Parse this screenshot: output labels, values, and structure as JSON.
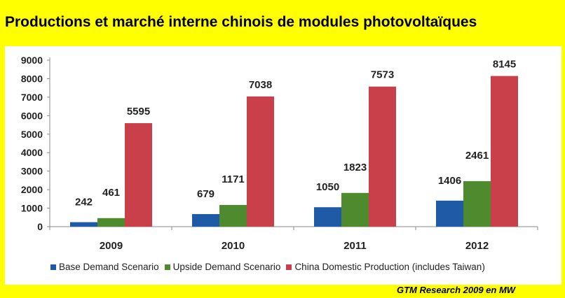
{
  "title": "Productions et marché interne chinois de modules photovoltaïques",
  "source": "GTM Research 2009 en MW",
  "chart_data": {
    "type": "bar",
    "title": "",
    "xlabel": "",
    "ylabel": "",
    "categories": [
      "2009",
      "2010",
      "2011",
      "2012"
    ],
    "series": [
      {
        "name": "Base Demand Scenario",
        "values": [
          242,
          679,
          1050,
          1406
        ],
        "color": "#1f5aa6"
      },
      {
        "name": "Upside Demand Scenario",
        "values": [
          461,
          1171,
          1823,
          2461
        ],
        "color": "#4e8a2e"
      },
      {
        "name": "China Domestic Production (includes Taiwan)",
        "values": [
          5595,
          7038,
          7573,
          8145
        ],
        "color": "#c9404a"
      }
    ],
    "data_labels": [
      [
        "242",
        "461",
        "5595"
      ],
      [
        "679",
        "1171",
        "7038"
      ],
      [
        "1050",
        "1823",
        "7573"
      ],
      [
        "1406",
        "2461",
        "8145"
      ]
    ],
    "y_ticks": [
      "0",
      "1000",
      "2000",
      "3000",
      "4000",
      "5000",
      "6000",
      "7000",
      "8000",
      "9000"
    ],
    "ylim": [
      0,
      9000
    ],
    "grid": false,
    "legend_position": "bottom"
  }
}
